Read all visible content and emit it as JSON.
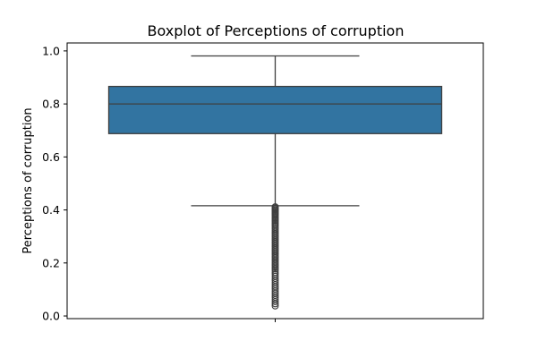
{
  "chart_data": {
    "type": "boxplot",
    "title": "Boxplot of Perceptions of corruption",
    "xlabel": "",
    "ylabel": "Perceptions of corruption",
    "ylim": [
      -0.01,
      1.03
    ],
    "yticks": [
      0.0,
      0.2,
      0.4,
      0.6,
      0.8,
      1.0
    ],
    "ytick_labels": [
      "0.0",
      "0.2",
      "0.4",
      "0.6",
      "0.8",
      "1.0"
    ],
    "grid": false,
    "box": {
      "whisker_low": 0.416,
      "q1": 0.688,
      "median": 0.8,
      "q3": 0.866,
      "whisker_high": 0.981
    },
    "outliers": [
      0.412,
      0.408,
      0.404,
      0.4,
      0.396,
      0.392,
      0.388,
      0.384,
      0.38,
      0.375,
      0.37,
      0.365,
      0.36,
      0.355,
      0.35,
      0.345,
      0.34,
      0.334,
      0.328,
      0.322,
      0.316,
      0.31,
      0.304,
      0.298,
      0.292,
      0.286,
      0.28,
      0.274,
      0.268,
      0.262,
      0.256,
      0.25,
      0.244,
      0.238,
      0.232,
      0.226,
      0.22,
      0.214,
      0.208,
      0.202,
      0.196,
      0.19,
      0.184,
      0.178,
      0.172,
      0.165,
      0.158,
      0.15,
      0.142,
      0.134,
      0.126,
      0.118,
      0.11,
      0.102,
      0.094,
      0.086,
      0.078,
      0.07,
      0.062,
      0.054,
      0.046,
      0.038
    ],
    "colors": {
      "box_fill": "#3274a1",
      "lines": "#3f3f3f",
      "axes": "#000000"
    }
  }
}
